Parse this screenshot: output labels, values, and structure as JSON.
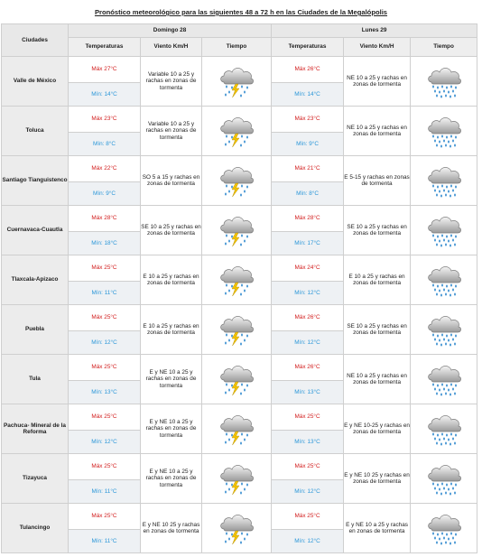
{
  "title": "Pronóstico meteorológico para las siguientes 48 a 72 h en las Ciudades de la Megalópolis",
  "header": {
    "cities_label": "Ciudades",
    "days": [
      "Domingo 28",
      "Lunes 29"
    ],
    "columns": [
      "Temperaturas",
      "Viento Km/H",
      "Tiempo"
    ]
  },
  "rows": [
    {
      "city": "Valle de México",
      "d1": {
        "max": "Máx 27°C",
        "min": "Mín: 14°C",
        "wind": "Variable 10 a 25 y rachas en zonas de tormenta",
        "icon": "storm-lightning-icon"
      },
      "d2": {
        "max": "Máx 26°C",
        "min": "Mín: 14°C",
        "wind": "NE 10 a 25 y rachas en zonas de tormenta",
        "icon": "rain-cloud-icon"
      }
    },
    {
      "city": "Toluca",
      "d1": {
        "max": "Máx 23°C",
        "min": "Mín: 8°C",
        "wind": "Variable 10 a 25 y rachas en zonas de tormenta",
        "icon": "storm-lightning-icon"
      },
      "d2": {
        "max": "Máx 23°C",
        "min": "Mín: 9°C",
        "wind": "NE 10 a 25 y rachas en zonas de tormenta",
        "icon": "rain-cloud-icon"
      }
    },
    {
      "city": "Santiago Tianguistenco",
      "d1": {
        "max": "Máx 22°C",
        "min": "Mín: 9°C",
        "wind": "SO 5 a 15 y rachas en zonas de tormenta",
        "icon": "storm-lightning-icon"
      },
      "d2": {
        "max": "Máx 21°C",
        "min": "Mín: 8°C",
        "wind": "E 5-15 y rachas en zonas de tormenta",
        "icon": "rain-cloud-icon"
      }
    },
    {
      "city": "Cuernavaca-Cuautla",
      "d1": {
        "max": "Máx 28°C",
        "min": "Mín: 18°C",
        "wind": "SE 10 a 25 y rachas en zonas de tormenta",
        "icon": "storm-lightning-icon"
      },
      "d2": {
        "max": "Máx 28°C",
        "min": "Mín: 17°C",
        "wind": "SE 10 a 25 y rachas en zonas de tormenta",
        "icon": "rain-cloud-icon"
      }
    },
    {
      "city": "Tlaxcala-Apizaco",
      "d1": {
        "max": "Máx 25°C",
        "min": "Mín: 11°C",
        "wind": "E 10 a 25 y rachas en zonas de tormenta",
        "icon": "storm-lightning-icon"
      },
      "d2": {
        "max": "Máx 24°C",
        "min": "Mín: 12°C",
        "wind": "E 10 a 25 y rachas en zonas de tormenta",
        "icon": "rain-cloud-icon"
      }
    },
    {
      "city": "Puebla",
      "d1": {
        "max": "Máx 25°C",
        "min": "Mín: 12°C",
        "wind": "E 10 a 25 y rachas en zonas de tormenta",
        "icon": "storm-lightning-icon"
      },
      "d2": {
        "max": "Máx 26°C",
        "min": "Mín: 12°C",
        "wind": "SE 10 a 25 y rachas en zonas de tormenta",
        "icon": "rain-cloud-icon"
      }
    },
    {
      "city": "Tula",
      "d1": {
        "max": "Máx 25°C",
        "min": "Mín: 13°C",
        "wind": "E y NE 10 a 25 y rachas en zonas de tormenta",
        "icon": "storm-lightning-icon"
      },
      "d2": {
        "max": "Máx 26°C",
        "min": "Mín: 13°C",
        "wind": "NE 10 a 25 y rachas en zonas de tormenta",
        "icon": "rain-cloud-icon"
      }
    },
    {
      "city": "Pachuca- Mineral de la Reforma",
      "d1": {
        "max": "Máx 25°C",
        "min": "Mín: 12°C",
        "wind": "E y NE 10 a 25 y rachas en zonas de tormenta",
        "icon": "storm-lightning-icon"
      },
      "d2": {
        "max": "Máx 25°C",
        "min": "Mín: 13°C",
        "wind": "E y NE 10-25 y rachas en zonas de tormenta",
        "icon": "rain-cloud-icon"
      }
    },
    {
      "city": "Tizayuca",
      "d1": {
        "max": "Máx 25°C",
        "min": "Mín: 11°C",
        "wind": "E y NE 10 a 25 y rachas en zonas de tormenta",
        "icon": "storm-lightning-icon"
      },
      "d2": {
        "max": "Máx 25°C",
        "min": "Mín: 12°C",
        "wind": "E y NE 10 25 y rachas en zonas de tormenta",
        "icon": "rain-cloud-icon"
      }
    },
    {
      "city": "Tulancingo",
      "d1": {
        "max": "Máx 25°C",
        "min": "Mín: 11°C",
        "wind": "E y NE 10 25 y rachas en zonas de tormenta",
        "icon": "storm-lightning-icon"
      },
      "d2": {
        "max": "Máx 25°C",
        "min": "Mín: 12°C",
        "wind": "E y NE 10 a 25 y rachas en zonas de tormenta",
        "icon": "rain-cloud-icon"
      }
    }
  ],
  "colors": {
    "max": "#d21c1c",
    "min": "#2a96d8",
    "header_bg": "#e8e8e8",
    "lightning": "#f2c200",
    "rain": "#3a8fd0"
  }
}
